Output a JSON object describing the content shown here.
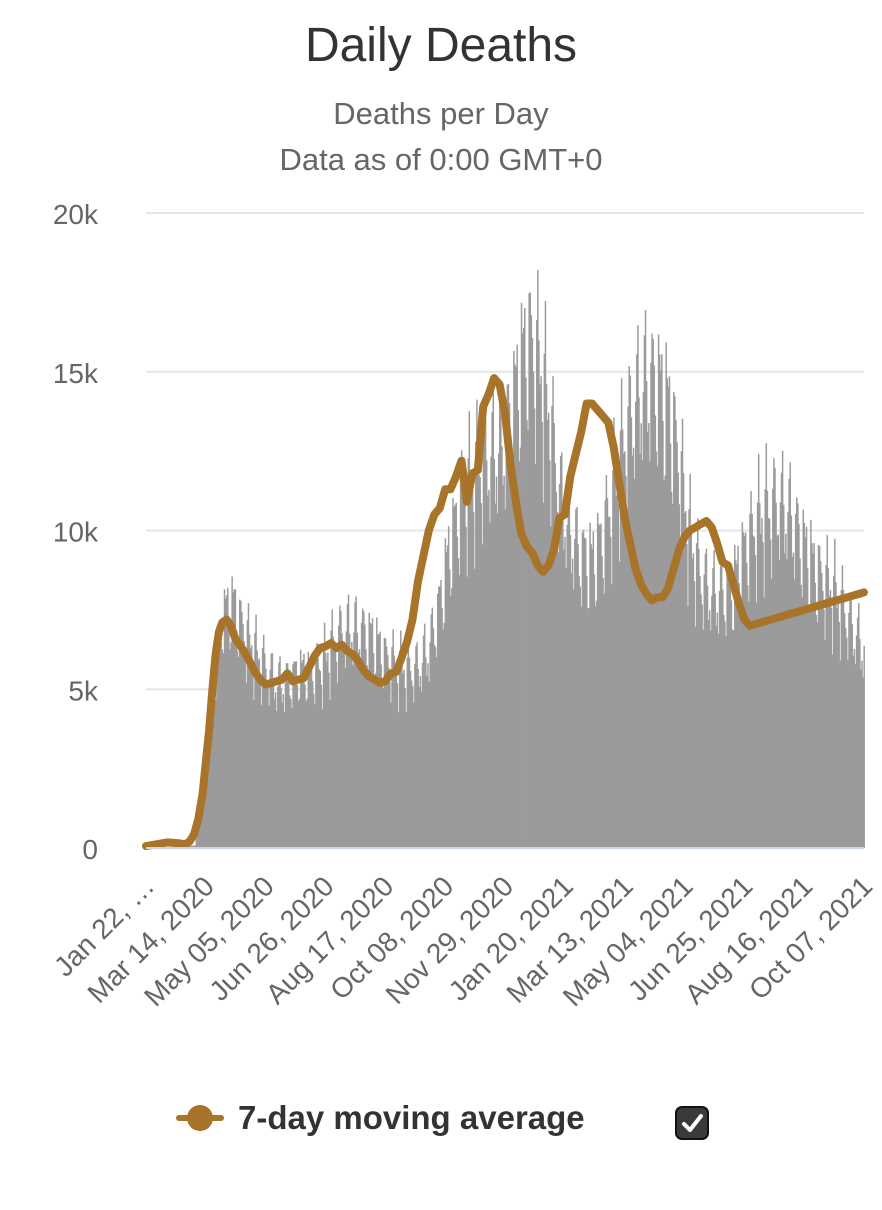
{
  "chart_data": {
    "type": "bar",
    "title": "Daily Deaths",
    "subtitle": [
      "Deaths per Day",
      "Data as of 0:00 GMT+0"
    ],
    "x_tick_labels": [
      "Jan 22, …",
      "Mar 14, 2020",
      "May 05, 2020",
      "Jun 26, 2020",
      "Aug 17, 2020",
      "Oct 08, 2020",
      "Nov 29, 2020",
      "Jan 20, 2021",
      "Mar 13, 2021",
      "May 04, 2021",
      "Jun 25, 2021",
      "Aug 16, 2021",
      "Oct 07, 2021"
    ],
    "y_ticks": [
      "0",
      "5k",
      "10k",
      "15k",
      "20k"
    ],
    "ylim": [
      0,
      20000
    ],
    "x_range_days": [
      0,
      660
    ],
    "grid": true,
    "legend_position": "bottom",
    "colors": {
      "bars": "#9b9b9b",
      "line": "#a8742a",
      "grid": "#e6e6e6",
      "baseline": "#ccd6eb"
    },
    "bar_profile_days": [
      0,
      45,
      52,
      60,
      70,
      80,
      90,
      100,
      110,
      120,
      130,
      140,
      150,
      160,
      170,
      180,
      190,
      200,
      210,
      220,
      230,
      240,
      250,
      260,
      270,
      280,
      290,
      300,
      310,
      320,
      330,
      340,
      350,
      360,
      370,
      380,
      390,
      400,
      410,
      420,
      430,
      440,
      450,
      460,
      470,
      480,
      490,
      500,
      510,
      520,
      530,
      540,
      550,
      560,
      570,
      580,
      590,
      600,
      610,
      620,
      630,
      640,
      650,
      660
    ],
    "bar_profile_values": [
      0,
      80,
      1500,
      4500,
      7200,
      7600,
      6700,
      6100,
      5600,
      5100,
      5100,
      5500,
      5500,
      5600,
      6200,
      6700,
      6800,
      6700,
      6500,
      5900,
      5700,
      5500,
      5600,
      6200,
      7600,
      9500,
      10800,
      11500,
      12000,
      12200,
      12700,
      14200,
      15800,
      15200,
      13600,
      11000,
      9800,
      9100,
      8900,
      9700,
      11100,
      12700,
      13800,
      14500,
      14400,
      13700,
      12000,
      9600,
      8400,
      7900,
      7900,
      8200,
      9200,
      10000,
      10500,
      10700,
      10500,
      9700,
      9000,
      8400,
      8100,
      7500,
      6800,
      6200
    ],
    "series": [
      {
        "name": "7-day moving average",
        "x_days": [
          0,
          10,
          20,
          30,
          36,
          40,
          44,
          48,
          52,
          55,
          58,
          61,
          64,
          67,
          70,
          74,
          78,
          82,
          86,
          90,
          95,
          100,
          105,
          110,
          115,
          120,
          125,
          130,
          135,
          140,
          145,
          150,
          155,
          160,
          165,
          170,
          175,
          180,
          185,
          190,
          195,
          200,
          205,
          210,
          215,
          220,
          225,
          230,
          235,
          240,
          245,
          250,
          255,
          260,
          265,
          270,
          275,
          280,
          285,
          290,
          295,
          300,
          305,
          310,
          315,
          320,
          325,
          330,
          335,
          340,
          345,
          350,
          355,
          360,
          365,
          370,
          375,
          380,
          385,
          390,
          395,
          400,
          405,
          410,
          415,
          420,
          425,
          430,
          435,
          440,
          445,
          450,
          455,
          460,
          465,
          470,
          475,
          480,
          485,
          490,
          495,
          500,
          505,
          510,
          515,
          520,
          525,
          530,
          535,
          540,
          545,
          550,
          555,
          560,
          565,
          570,
          575,
          580,
          585,
          590,
          595,
          600,
          605,
          610,
          615,
          620,
          625,
          630,
          635,
          640,
          645,
          650,
          655,
          660
        ],
        "values": [
          60,
          120,
          180,
          150,
          120,
          200,
          420,
          900,
          1700,
          2700,
          3700,
          5000,
          6100,
          6800,
          7100,
          7200,
          7000,
          6600,
          6400,
          6200,
          5900,
          5550,
          5300,
          5150,
          5200,
          5250,
          5300,
          5500,
          5250,
          5300,
          5350,
          5700,
          6050,
          6300,
          6350,
          6450,
          6300,
          6400,
          6200,
          6100,
          5900,
          5600,
          5400,
          5300,
          5200,
          5250,
          5500,
          5550,
          6000,
          6500,
          7200,
          8400,
          9200,
          10000,
          10500,
          10700,
          11300,
          11300,
          11700,
          12200,
          10900,
          11800,
          11900,
          13900,
          14300,
          14800,
          14600,
          13700,
          12100,
          10900,
          9900,
          9500,
          9300,
          8900,
          8700,
          8900,
          9400,
          10400,
          10500,
          11700,
          12400,
          13100,
          14000,
          14000,
          13800,
          13600,
          13400,
          12600,
          11500,
          10400,
          9600,
          8800,
          8300,
          8000,
          7800,
          7900,
          7900,
          8200,
          8800,
          9400,
          9800,
          10000,
          10100,
          10200,
          10300,
          10100,
          9600,
          9000,
          8900,
          8300,
          7700,
          7200,
          7000,
          7050,
          7100,
          7150,
          7200,
          7250,
          7300,
          7350,
          7400,
          7450,
          7500,
          7550,
          7600,
          7650,
          7700,
          7750,
          7800,
          7850,
          7900,
          7950,
          8000,
          8050
        ]
      }
    ]
  },
  "legend": {
    "label": "7-day moving average"
  }
}
